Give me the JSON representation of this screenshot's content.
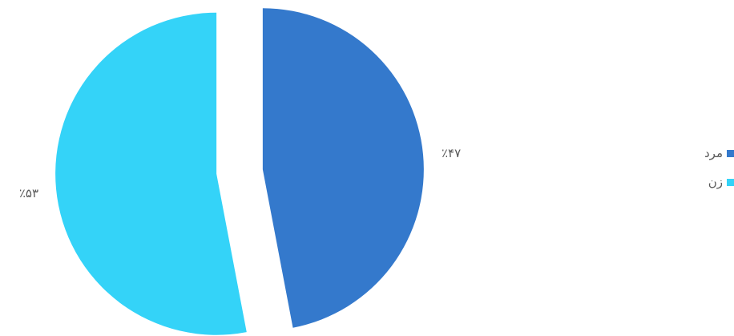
{
  "chart_data": {
    "type": "pie",
    "exploded": true,
    "legend_position": "right",
    "slices": [
      {
        "name": "مرد",
        "value": 47,
        "label": "٪۴۷",
        "color": "#3479CC"
      },
      {
        "name": "زن",
        "value": 53,
        "label": "٪۵۳",
        "color": "#34D3F8"
      }
    ]
  }
}
